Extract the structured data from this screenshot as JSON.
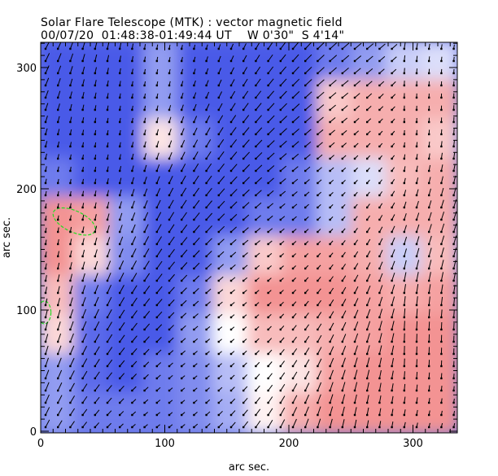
{
  "title": "Solar Flare Telescope (MTK) : vector magnetic field",
  "subtitle": "00/07/20  01:48:38-01:49:44 UT    W 0'30\"  S 4'14\"",
  "chart_data": {
    "type": "heatmap",
    "title": "Solar Flare Telescope (MTK) : vector magnetic field",
    "xlabel": "arc sec.",
    "ylabel": "arc sec.",
    "xlim": [
      0,
      336
    ],
    "ylim": [
      0,
      322
    ],
    "xticks": [
      "0",
      "100",
      "200",
      "300"
    ],
    "yticks": [
      "0",
      "100",
      "200",
      "300"
    ],
    "xtick_values": [
      0,
      100,
      200,
      300
    ],
    "ytick_values": [
      0,
      100,
      200,
      300
    ],
    "colors": {
      "positive": "#f07878",
      "negative": "#4a5ae8",
      "neutral": "#ffffff",
      "contour": "#22dd22",
      "vector": "#000000"
    },
    "polarity_grid_note_rows_top_to_bottom": true,
    "polarity_grid": [
      [
        -1,
        -1,
        -1,
        -0.6,
        -1,
        -1,
        -1,
        -1,
        -0.8,
        -0.6,
        -0.3,
        -0.2
      ],
      [
        -1,
        -1,
        -1,
        -0.6,
        -1,
        -1,
        -1,
        -1,
        0.4,
        0.6,
        0.6,
        0.6
      ],
      [
        -1,
        -1,
        -1,
        0.2,
        -0.8,
        -1,
        -1,
        -1,
        0.6,
        0.6,
        0.6,
        0.4
      ],
      [
        -0.8,
        -1,
        -1,
        -1,
        -1,
        -1,
        -1,
        -0.8,
        -0.4,
        -0.2,
        0.5,
        0.6
      ],
      [
        0.8,
        0.7,
        -0.6,
        -1,
        -1,
        -1,
        -0.8,
        -0.8,
        -0.4,
        0.6,
        0.6,
        0.6
      ],
      [
        0.8,
        0.3,
        -0.7,
        -1,
        -1,
        -0.6,
        0.4,
        0.7,
        0.7,
        0.6,
        -0.3,
        0.5
      ],
      [
        0.5,
        -0.8,
        -1,
        -1,
        -0.8,
        0.3,
        0.8,
        0.8,
        0.8,
        0.7,
        0.6,
        0.7
      ],
      [
        0.3,
        -0.9,
        -1,
        -1,
        -0.6,
        0,
        0.5,
        0.5,
        0.6,
        0.7,
        0.8,
        0.8
      ],
      [
        -0.6,
        -0.9,
        -1,
        -0.8,
        -0.7,
        -0.4,
        0,
        0.2,
        0.7,
        0.8,
        0.8,
        0.8
      ],
      [
        -0.6,
        -0.8,
        -0.8,
        -0.8,
        -0.7,
        -0.5,
        0.1,
        0.6,
        0.8,
        0.8,
        0.8,
        0.8
      ]
    ]
  }
}
